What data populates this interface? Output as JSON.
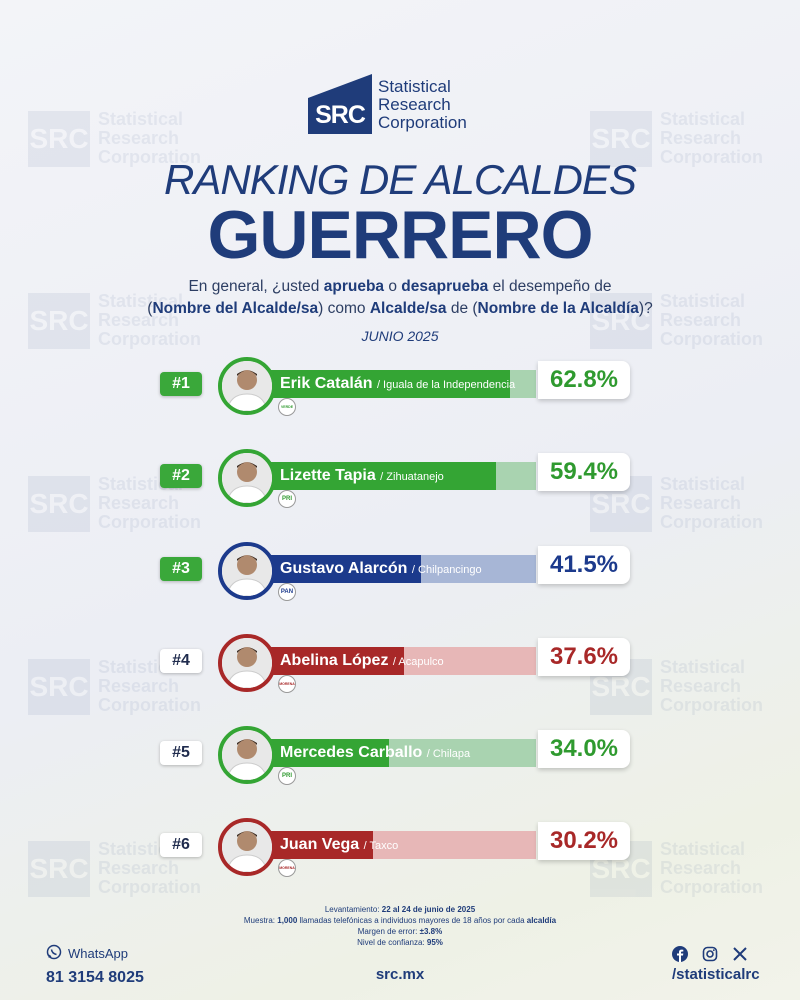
{
  "logo": {
    "mark": "SRC",
    "line1": "Statistical",
    "line2": "Research",
    "line3": "Corporation"
  },
  "title": "RANKING DE ALCALDES",
  "subtitle": "GUERRERO",
  "question": {
    "p1": "En general, ¿usted ",
    "b1": "aprueba",
    "p2": " o ",
    "b2": "desaprueba",
    "p3": " el desempeño de",
    "p4": "(",
    "b3": "Nombre del Alcalde/sa",
    "p5": ") como ",
    "b4": "Alcalde/sa",
    "p6": " de (",
    "b5": "Nombre de la Alcaldía",
    "p7": ")?"
  },
  "date": "JUNIO 2025",
  "chart_data": {
    "type": "bar",
    "title": "RANKING DE ALCALDES GUERRERO",
    "ylim": [
      0,
      100
    ],
    "categories": [
      "Erik Catalán",
      "Lizette Tapia",
      "Gustavo Alarcón",
      "Abelina López",
      "Mercedes Carballo",
      "Juan Vega"
    ],
    "values": [
      62.8,
      59.4,
      41.5,
      37.6,
      34.0,
      30.2
    ],
    "items": [
      {
        "rank": "#1",
        "name": "Erik Catalán",
        "place": "/ Iguala de la Independencia",
        "value": 62.8,
        "pct": "62.8%",
        "party": "VERDE",
        "color": "#34a534",
        "rest": "#a9d3b0",
        "rank_bg": "#3aa83a",
        "rank_fg": "#ffffff",
        "pct_color": "#2f9a2f"
      },
      {
        "rank": "#2",
        "name": "Lizette Tapia",
        "place": "/ Zihuatanejo",
        "value": 59.4,
        "pct": "59.4%",
        "party": "PRI",
        "color": "#34a534",
        "rest": "#a9d3b0",
        "rank_bg": "#3aa83a",
        "rank_fg": "#ffffff",
        "pct_color": "#2f9a2f"
      },
      {
        "rank": "#3",
        "name": "Gustavo Alarcón",
        "place": "/ Chilpancingo",
        "value": 41.5,
        "pct": "41.5%",
        "party": "PAN",
        "color": "#1c3a8c",
        "rest": "#a7b6d6",
        "rank_bg": "#3aa83a",
        "rank_fg": "#ffffff",
        "pct_color": "#1c3a8c"
      },
      {
        "rank": "#4",
        "name": "Abelina López",
        "place": "/ Acapulco",
        "value": 37.6,
        "pct": "37.6%",
        "party": "MORENA",
        "color": "#a82828",
        "rest": "#e7b7b7",
        "rank_bg": "#ffffff",
        "rank_fg": "#1f2b4d",
        "pct_color": "#a82828"
      },
      {
        "rank": "#5",
        "name": "Mercedes Carballo",
        "place": "/ Chilapa",
        "value": 34.0,
        "pct": "34.0%",
        "party": "PRI",
        "color": "#34a534",
        "rest": "#a9d3b0",
        "rank_bg": "#ffffff",
        "rank_fg": "#1f2b4d",
        "pct_color": "#2f9a2f"
      },
      {
        "rank": "#6",
        "name": "Juan Vega",
        "place": "/ Taxco",
        "value": 30.2,
        "pct": "30.2%",
        "party": "MORENA",
        "color": "#a82828",
        "rest": "#e7b7b7",
        "rank_bg": "#ffffff",
        "rank_fg": "#1f2b4d",
        "pct_color": "#a82828"
      }
    ]
  },
  "footnote": {
    "l1_label": "Levantamiento:",
    "l1_value": "22 al 24 de junio de 2025",
    "l2_label": "Muestra:",
    "l2_a": "1,000",
    "l2_b": " llamadas telefónicas a individuos mayores de 18 años por cada ",
    "l2_c": "alcaldía",
    "l3_label": "Margen de error:",
    "l3_value": "±3.8%",
    "l4_label": "Nivel de confianza:",
    "l4_value": "95%"
  },
  "footer": {
    "whatsapp_label": "WhatsApp",
    "whatsapp_number": "81 3154 8025",
    "site": "src.mx",
    "handle": "/statisticalrc"
  }
}
